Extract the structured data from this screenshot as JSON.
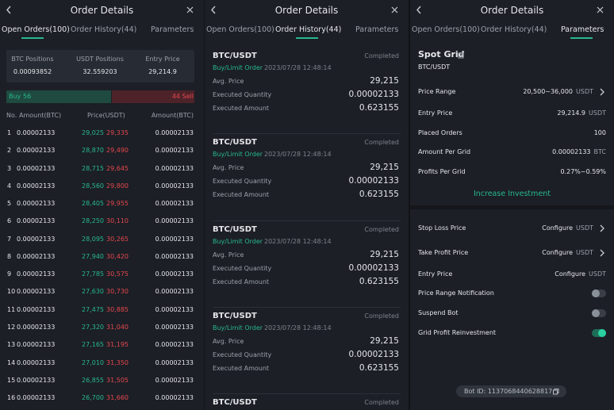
{
  "header": {
    "title": "Order Details",
    "tabs": [
      "Open Orders(100)",
      "Order History(44)",
      "Parameters"
    ]
  },
  "open_orders": {
    "stats": [
      {
        "label": "BTC Positions",
        "value": "0.00093852"
      },
      {
        "label": "USDT Positions",
        "value": "32.559203"
      },
      {
        "label": "Entry Price",
        "value": "29,214.9"
      }
    ],
    "depth": {
      "buy_label": "Buy",
      "buy": 56,
      "sell": 44,
      "sell_label": "Sell"
    },
    "columns": [
      "No.",
      "Amount(BTC)",
      "Price(USDT)",
      "Amount(BTC)"
    ],
    "rows": [
      [
        "1",
        "0.00002133",
        "29,025",
        "29,335",
        "0.00002133"
      ],
      [
        "2",
        "0.00002133",
        "28,870",
        "29,490",
        "0.00002133"
      ],
      [
        "3",
        "0.00002133",
        "28,715",
        "29,645",
        "0.00002133"
      ],
      [
        "4",
        "0.00002133",
        "28,560",
        "29,800",
        "0.00002133"
      ],
      [
        "5",
        "0.00002133",
        "28,405",
        "29,955",
        "0.00002133"
      ],
      [
        "6",
        "0.00002133",
        "28,250",
        "30,110",
        "0.00002133"
      ],
      [
        "7",
        "0.00002133",
        "28,095",
        "30,265",
        "0.00002133"
      ],
      [
        "8",
        "0.00002133",
        "27,940",
        "30,420",
        "0.00002133"
      ],
      [
        "9",
        "0.00002133",
        "27,785",
        "30,575",
        "0.00002133"
      ],
      [
        "10",
        "0.00002133",
        "27,630",
        "30,730",
        "0.00002133"
      ],
      [
        "11",
        "0.00002133",
        "27,475",
        "30,885",
        "0.00002133"
      ],
      [
        "12",
        "0.00002133",
        "27,320",
        "31,040",
        "0.00002133"
      ],
      [
        "13",
        "0.00002133",
        "27,165",
        "31,195",
        "0.00002133"
      ],
      [
        "14",
        "0.00002133",
        "27,010",
        "31,350",
        "0.00002133"
      ],
      [
        "15",
        "0.00002133",
        "26,855",
        "31,505",
        "0.00002133"
      ],
      [
        "16",
        "0.00002133",
        "26,700",
        "31,660",
        "0.00002133"
      ]
    ]
  },
  "order_history": {
    "orders": [
      {
        "pair": "BTC/USDT",
        "status": "Completed",
        "type": "Buy/Limit Order",
        "time": "2023/07/28 12:48:14",
        "fields": [
          {
            "label": "Avg. Price",
            "value": "29,215"
          },
          {
            "label": "Executed Quantity",
            "value": "0.00002133"
          },
          {
            "label": "Executed Amount",
            "value": "0.623155"
          }
        ]
      },
      {
        "pair": "BTC/USDT",
        "status": "Completed",
        "type": "Buy/Limit Order",
        "time": "2023/07/28 12:48:14",
        "fields": [
          {
            "label": "Avg. Price",
            "value": "29,215"
          },
          {
            "label": "Executed Quantity",
            "value": "0.00002133"
          },
          {
            "label": "Executed Amount",
            "value": "0.623155"
          }
        ]
      },
      {
        "pair": "BTC/USDT",
        "status": "Completed",
        "type": "Buy/Limit Order",
        "time": "2023/07/28 12:48:14",
        "fields": [
          {
            "label": "Avg. Price",
            "value": "29,215"
          },
          {
            "label": "Executed Quantity",
            "value": "0.00002133"
          },
          {
            "label": "Executed Amount",
            "value": "0.623155"
          }
        ]
      },
      {
        "pair": "BTC/USDT",
        "status": "Completed",
        "type": "Buy/Limit Order",
        "time": "2023/07/28 12:48:14",
        "fields": [
          {
            "label": "Avg. Price",
            "value": "29,215"
          },
          {
            "label": "Executed Quantity",
            "value": "0.00002133"
          },
          {
            "label": "Executed Amount",
            "value": "0.623155"
          }
        ]
      },
      {
        "pair": "BTC/USDT",
        "status": "Completed"
      }
    ]
  },
  "parameters": {
    "title": "Spot Grid",
    "pair": "BTC/USDT",
    "summary": [
      {
        "label": "Price Range",
        "value": "20,500~36,000",
        "unit": "USDT",
        "arrow": true
      },
      {
        "label": "Entry Price",
        "value": "29,214.9",
        "unit": "USDT"
      },
      {
        "label": "Placed Orders",
        "value": "100"
      },
      {
        "label": "Amount Per Grid",
        "value": "0.00002133",
        "unit": "BTC"
      },
      {
        "label": "Profits Per Grid",
        "value": "0.27%~0.59%"
      }
    ],
    "button": "Increase Investment",
    "settings": [
      {
        "label": "Stop Loss Price",
        "value": "Configure",
        "unit": "USDT",
        "arrow": true
      },
      {
        "label": "Take Profit Price",
        "value": "Configure",
        "unit": "USDT",
        "arrow": true
      },
      {
        "label": "Entry Price",
        "value": "Configure",
        "unit": "USDT"
      },
      {
        "label": "Price Range Notification",
        "toggle": false
      },
      {
        "label": "Suspend Bot",
        "toggle": false
      },
      {
        "label": "Grid Profit Reinvestment",
        "toggle": true
      }
    ],
    "bot_id": "Bot ID: 1137068440628817"
  }
}
